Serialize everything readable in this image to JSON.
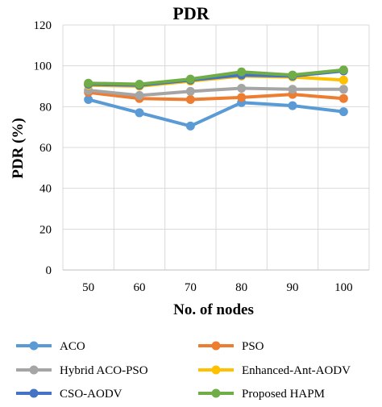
{
  "chart_data": {
    "type": "line",
    "title": "PDR",
    "xlabel": "No. of nodes",
    "ylabel": "PDR (%)",
    "categories": [
      "50",
      "60",
      "70",
      "80",
      "90",
      "100"
    ],
    "yticks": [
      "0",
      "20",
      "40",
      "60",
      "80",
      "100",
      "120"
    ],
    "ylim": [
      0,
      120
    ],
    "grid": true,
    "legend_position": "bottom",
    "series": [
      {
        "name": "ACO",
        "color": "#5B9BD5",
        "values": [
          83.5,
          77,
          70.5,
          82,
          80.5,
          77.5
        ]
      },
      {
        "name": "PSO",
        "color": "#ED7D31",
        "values": [
          87,
          84,
          83.5,
          84.5,
          86,
          84
        ]
      },
      {
        "name": "Hybrid ACO-PSO",
        "color": "#A5A5A5",
        "values": [
          88,
          85.5,
          87.5,
          89,
          88.5,
          88.5
        ]
      },
      {
        "name": "Enhanced-Ant-AODV",
        "color": "#FFC000",
        "values": [
          90.5,
          90,
          92.5,
          95,
          94.5,
          93
        ]
      },
      {
        "name": "CSO-AODV",
        "color": "#4472C4",
        "values": [
          91,
          90.5,
          93,
          95.5,
          95,
          97.5
        ]
      },
      {
        "name": "Proposed HAPM",
        "color": "#70AD47",
        "values": [
          91.5,
          91,
          93.5,
          97,
          95.5,
          98
        ]
      }
    ]
  }
}
